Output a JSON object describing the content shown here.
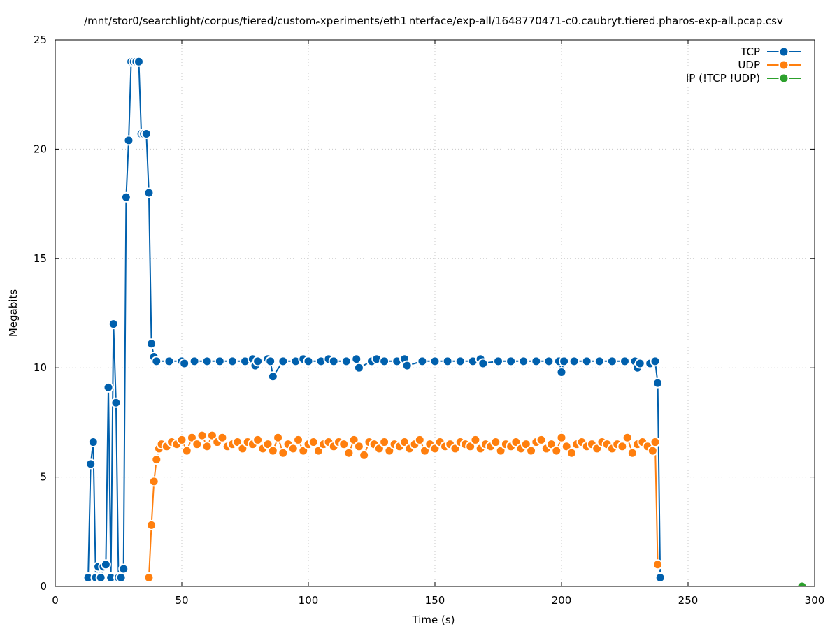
{
  "chart_data": {
    "type": "line",
    "title": "/mnt/stor0/searchlight/corpus/tiered/customₑxperiments/eth1ᵢnterface/exp-all/1648770471-c0.caubryt.tiered.pharos-exp-all.pcap.csv",
    "xlabel": "Time (s)",
    "ylabel": "Megabits",
    "xlim": [
      0,
      300
    ],
    "ylim": [
      0,
      25
    ],
    "xticks": [
      0,
      50,
      100,
      150,
      200,
      250,
      300
    ],
    "yticks": [
      0,
      5,
      10,
      15,
      20,
      25
    ],
    "grid": true,
    "legend_position": "top-right",
    "series": [
      {
        "name": "TCP",
        "color": "#0060ad",
        "x": [
          13,
          14,
          15,
          16,
          17,
          18,
          19,
          20,
          21,
          22,
          23,
          24,
          25,
          26,
          27,
          28,
          29,
          30,
          31,
          32,
          33,
          34,
          35,
          36,
          37,
          38,
          39,
          40,
          45,
          50,
          51,
          55,
          60,
          65,
          70,
          75,
          78,
          79,
          80,
          84,
          85,
          86,
          90,
          95,
          98,
          100,
          105,
          108,
          110,
          115,
          119,
          120,
          125,
          127,
          130,
          135,
          138,
          139,
          145,
          150,
          155,
          160,
          165,
          168,
          169,
          175,
          180,
          185,
          190,
          195,
          199,
          200,
          201,
          205,
          210,
          215,
          220,
          225,
          229,
          230,
          231,
          235,
          237,
          238,
          239
        ],
        "y": [
          0.4,
          5.6,
          6.6,
          0.4,
          0.9,
          0.4,
          0.9,
          1.0,
          9.1,
          0.4,
          12.0,
          8.4,
          0.4,
          0.4,
          0.8,
          17.8,
          20.4,
          24.0,
          24.0,
          24.0,
          24.0,
          20.7,
          20.7,
          20.7,
          18.0,
          11.1,
          10.5,
          10.3,
          10.3,
          10.3,
          10.2,
          10.3,
          10.3,
          10.3,
          10.3,
          10.3,
          10.4,
          10.1,
          10.3,
          10.4,
          10.3,
          9.6,
          10.3,
          10.3,
          10.4,
          10.3,
          10.3,
          10.4,
          10.3,
          10.3,
          10.4,
          10.0,
          10.3,
          10.4,
          10.3,
          10.3,
          10.4,
          10.1,
          10.3,
          10.3,
          10.3,
          10.3,
          10.3,
          10.4,
          10.2,
          10.3,
          10.3,
          10.3,
          10.3,
          10.3,
          10.3,
          9.8,
          10.3,
          10.3,
          10.3,
          10.3,
          10.3,
          10.3,
          10.3,
          10.0,
          10.2,
          10.2,
          10.3,
          9.3,
          0.4
        ]
      },
      {
        "name": "UDP",
        "color": "#ff7f0e",
        "x": [
          37,
          38,
          39,
          40,
          41,
          42,
          44,
          46,
          48,
          50,
          52,
          54,
          56,
          58,
          60,
          62,
          64,
          66,
          68,
          70,
          72,
          74,
          76,
          78,
          80,
          82,
          84,
          86,
          88,
          90,
          92,
          94,
          96,
          98,
          100,
          102,
          104,
          106,
          108,
          110,
          112,
          114,
          116,
          118,
          120,
          122,
          124,
          126,
          128,
          130,
          132,
          134,
          136,
          138,
          140,
          142,
          144,
          146,
          148,
          150,
          152,
          154,
          156,
          158,
          160,
          162,
          164,
          166,
          168,
          170,
          172,
          174,
          176,
          178,
          180,
          182,
          184,
          186,
          188,
          190,
          192,
          194,
          196,
          198,
          200,
          202,
          204,
          206,
          208,
          210,
          212,
          214,
          216,
          218,
          220,
          222,
          224,
          226,
          228,
          230,
          232,
          234,
          236,
          237,
          238
        ],
        "y": [
          0.4,
          2.8,
          4.8,
          5.8,
          6.3,
          6.5,
          6.4,
          6.6,
          6.5,
          6.7,
          6.2,
          6.8,
          6.5,
          6.9,
          6.4,
          6.9,
          6.6,
          6.8,
          6.4,
          6.5,
          6.6,
          6.3,
          6.6,
          6.5,
          6.7,
          6.3,
          6.5,
          6.2,
          6.8,
          6.1,
          6.5,
          6.3,
          6.7,
          6.2,
          6.5,
          6.6,
          6.2,
          6.5,
          6.6,
          6.4,
          6.6,
          6.5,
          6.1,
          6.7,
          6.4,
          6.0,
          6.6,
          6.5,
          6.3,
          6.6,
          6.2,
          6.5,
          6.4,
          6.6,
          6.3,
          6.5,
          6.7,
          6.2,
          6.5,
          6.3,
          6.6,
          6.4,
          6.5,
          6.3,
          6.6,
          6.5,
          6.4,
          6.7,
          6.3,
          6.5,
          6.4,
          6.6,
          6.2,
          6.5,
          6.4,
          6.6,
          6.3,
          6.5,
          6.2,
          6.6,
          6.7,
          6.3,
          6.5,
          6.2,
          6.8,
          6.4,
          6.1,
          6.5,
          6.6,
          6.4,
          6.5,
          6.3,
          6.6,
          6.5,
          6.3,
          6.5,
          6.4,
          6.8,
          6.1,
          6.5,
          6.6,
          6.4,
          6.2,
          6.6,
          1.0
        ]
      },
      {
        "name": "IP (!TCP  !UDP)",
        "color": "#2ca02c",
        "x": [
          295
        ],
        "y": [
          0.0
        ]
      }
    ]
  }
}
